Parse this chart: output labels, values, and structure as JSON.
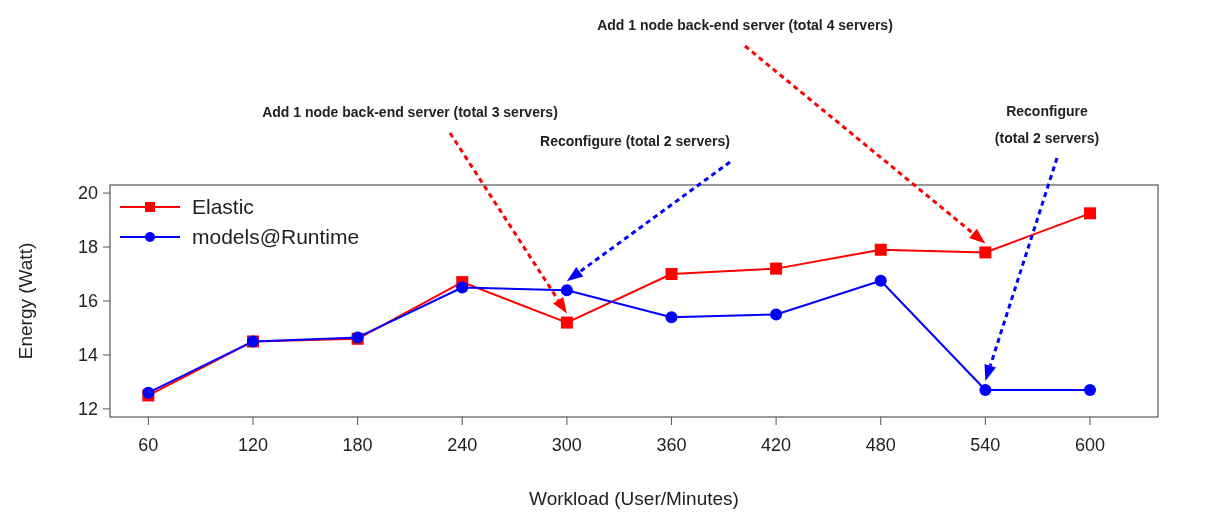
{
  "chart_data": {
    "type": "line",
    "xlabel": "Workload (User/Minutes)",
    "ylabel": "Energy (Watt)",
    "x": [
      60,
      120,
      180,
      240,
      300,
      360,
      420,
      480,
      540,
      600
    ],
    "series": [
      {
        "name": "Elastic",
        "color": "#ff0000",
        "marker": "square",
        "values": [
          12.5,
          14.5,
          14.6,
          16.7,
          15.2,
          17.0,
          17.2,
          17.9,
          17.8,
          19.25
        ]
      },
      {
        "name": "models@Runtime",
        "color": "#0000ff",
        "marker": "circle",
        "values": [
          12.6,
          14.5,
          14.65,
          16.5,
          16.4,
          15.4,
          15.5,
          16.75,
          12.7,
          12.7
        ]
      }
    ],
    "xlim": [
      38,
      639
    ],
    "xticks": [
      60,
      120,
      180,
      240,
      300,
      360,
      420,
      480,
      540,
      600
    ],
    "ylim": [
      11.7,
      20.3
    ],
    "yticks": [
      12,
      14,
      16,
      18,
      20
    ],
    "grid": false,
    "legend": "top left",
    "line_style": "solid",
    "annotations": [
      "Add 1 node back-end server (total 3 servers)",
      "Reconfigure (total 2 servers)",
      "Add 1 node back-end server (total 4 servers)",
      "Reconfigure\n(total 2 servers)"
    ]
  }
}
